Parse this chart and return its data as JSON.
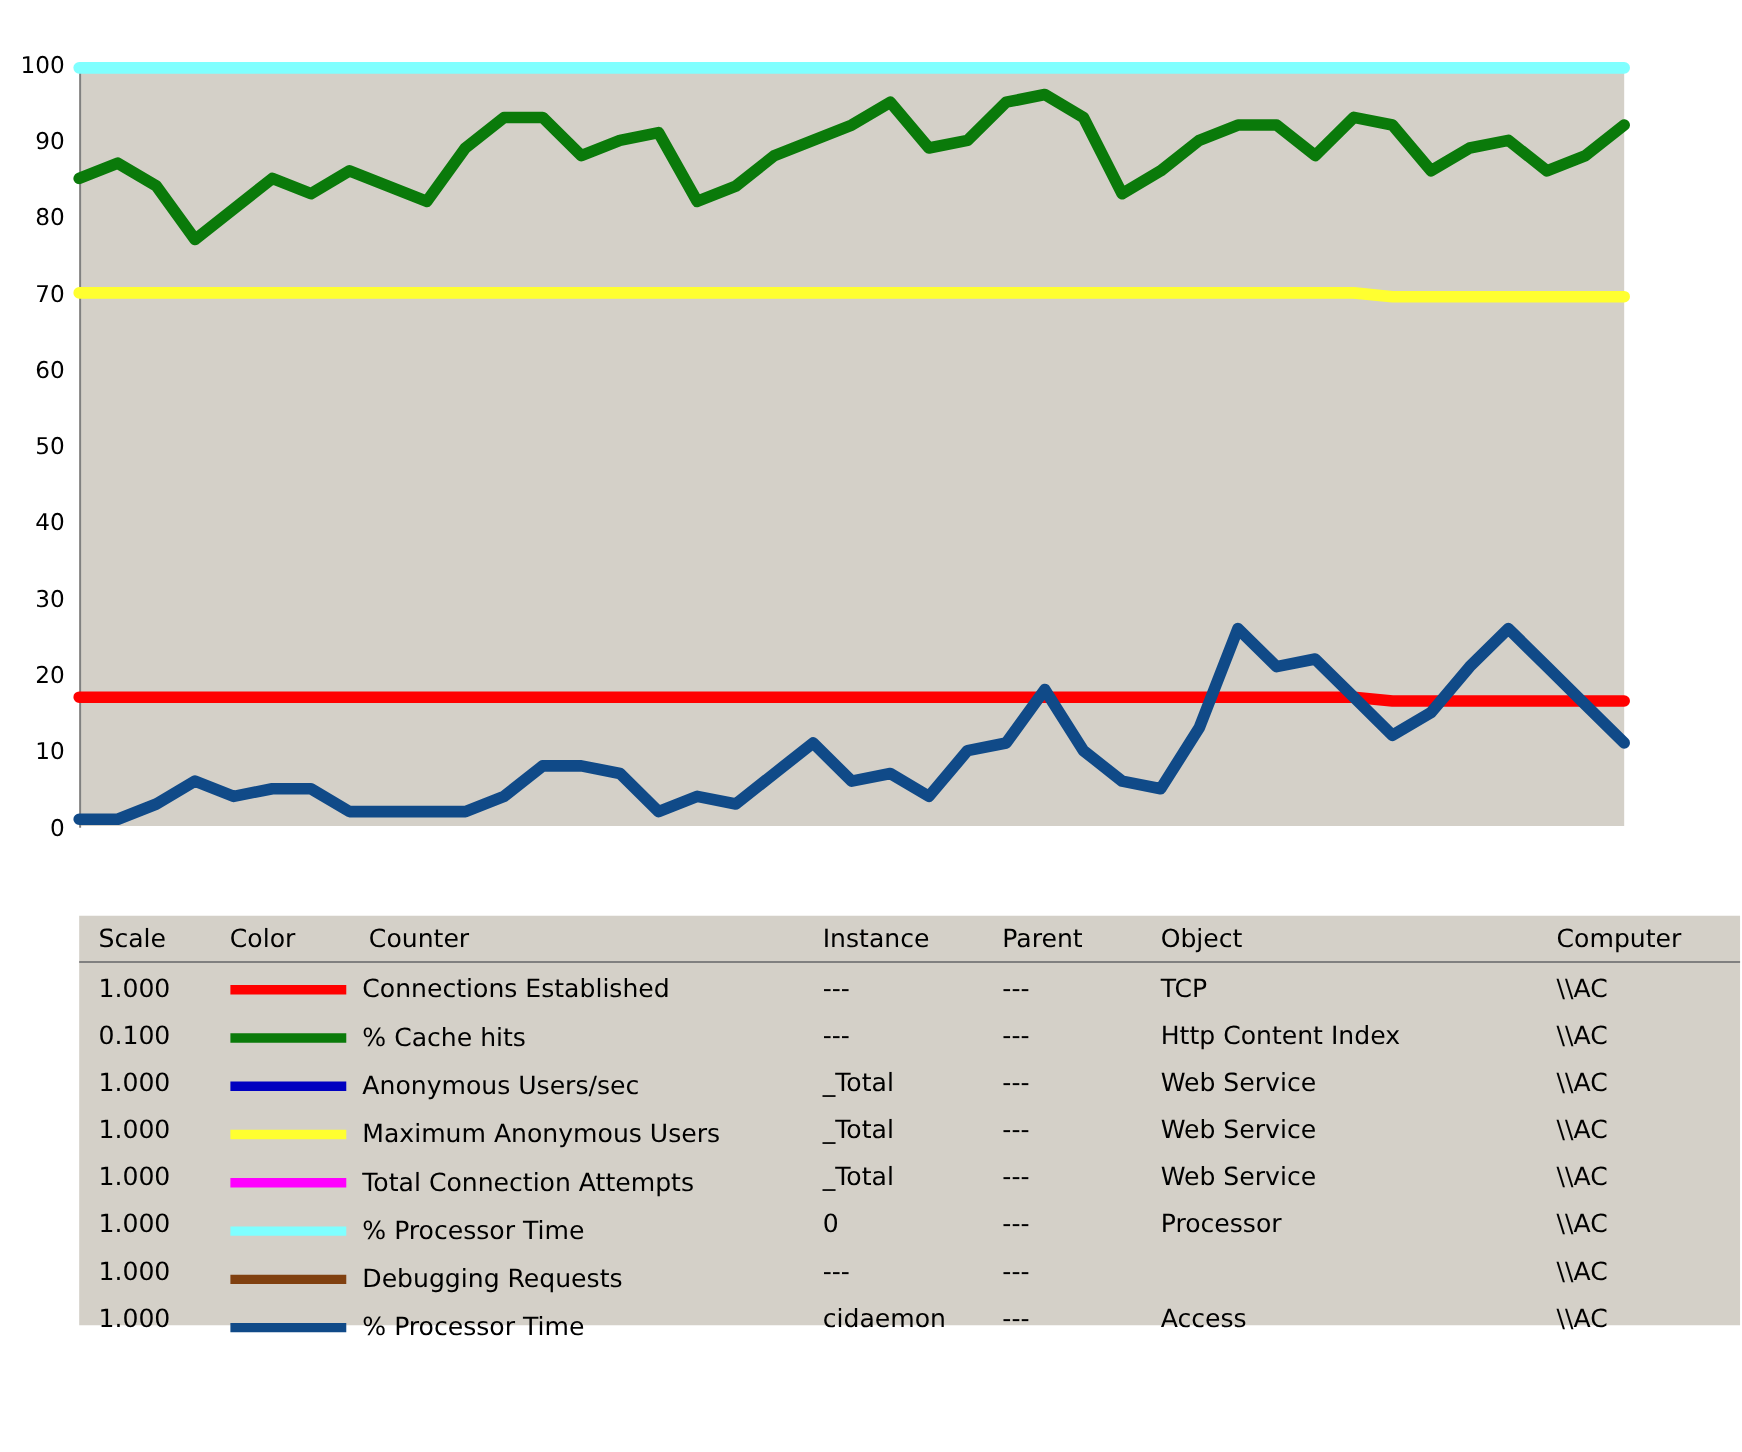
{
  "chart_data": {
    "type": "line",
    "categories": [
      null,
      null,
      null,
      null,
      null,
      null,
      null,
      null,
      null,
      null,
      null,
      null,
      null,
      null,
      null,
      null,
      null,
      null,
      null,
      null,
      null,
      null,
      null,
      null,
      null,
      null,
      null,
      null,
      null,
      null,
      null,
      null,
      null,
      null,
      null,
      null,
      null,
      null,
      null,
      null,
      null
    ],
    "ylim": [
      0,
      100
    ],
    "yticks": [
      0,
      10,
      20,
      30,
      40,
      50,
      60,
      70,
      80,
      90,
      100
    ],
    "grid": false,
    "tick_labels": "y",
    "legend": "bottom",
    "series": [
      {
        "name": "Connections Established",
        "color": "#ff0000",
        "values": [
          17,
          17,
          17,
          17,
          17,
          17,
          17,
          17,
          17,
          17,
          17,
          17,
          17,
          17,
          17,
          17,
          17,
          17,
          17,
          17,
          17,
          17,
          17,
          17,
          17,
          17,
          17,
          17,
          17,
          17,
          17,
          17,
          17,
          17,
          16.5,
          16.5,
          16.5,
          16.5,
          16.5,
          16.5,
          16.5
        ]
      },
      {
        "name": "% Cache hits",
        "color": "#0a7a0a",
        "values": [
          85,
          87,
          84,
          77,
          81,
          85,
          83,
          86,
          84,
          82,
          89,
          93,
          93,
          88,
          90,
          91,
          82,
          84,
          88,
          90,
          92,
          95,
          89,
          90,
          95,
          96,
          93,
          83,
          86,
          90,
          92,
          92,
          88,
          93,
          92,
          86,
          89,
          90,
          86,
          88,
          92
        ]
      },
      {
        "name": "Anonymous Users/sec",
        "color": "#0000c0",
        "values": [
          null,
          null,
          null,
          null,
          null,
          null,
          null,
          null,
          null,
          null,
          null,
          null,
          null,
          null,
          null,
          null,
          null,
          null,
          null,
          null,
          null,
          null,
          null,
          null,
          null,
          null,
          null,
          null,
          null,
          null,
          null,
          null,
          null,
          null,
          null,
          null,
          null,
          null,
          null,
          null,
          null
        ]
      },
      {
        "name": "Maximum Anonymous Users",
        "color": "#ffff30",
        "values": [
          70,
          70,
          70,
          70,
          70,
          70,
          70,
          70,
          70,
          70,
          70,
          70,
          70,
          70,
          70,
          70,
          70,
          70,
          70,
          70,
          70,
          70,
          70,
          70,
          70,
          70,
          70,
          70,
          70,
          70,
          70,
          70,
          70,
          70,
          69.5,
          69.5,
          69.5,
          69.5,
          69.5,
          69.5,
          69.5
        ]
      },
      {
        "name": "Total Connection Attempts",
        "color": "#ff00ff",
        "values": [
          null,
          null,
          null,
          null,
          null,
          null,
          null,
          null,
          null,
          null,
          null,
          null,
          null,
          null,
          null,
          null,
          null,
          null,
          null,
          null,
          null,
          null,
          null,
          null,
          null,
          null,
          null,
          null,
          null,
          null,
          null,
          null,
          null,
          null,
          null,
          null,
          null,
          null,
          null,
          null,
          null
        ]
      },
      {
        "name": "% Processor Time",
        "color": "#7fffff",
        "values": [
          99.5,
          99.5,
          99.5,
          99.5,
          99.5,
          99.5,
          99.5,
          99.5,
          99.5,
          99.5,
          99.5,
          99.5,
          99.5,
          99.5,
          99.5,
          99.5,
          99.5,
          99.5,
          99.5,
          99.5,
          99.5,
          99.5,
          99.5,
          99.5,
          99.5,
          99.5,
          99.5,
          99.5,
          99.5,
          99.5,
          99.5,
          99.5,
          99.5,
          99.5,
          99.5,
          99.5,
          99.5,
          99.5,
          99.5,
          99.5,
          99.5
        ]
      },
      {
        "name": "Debugging Requests",
        "color": "#804010",
        "values": [
          null,
          null,
          null,
          null,
          null,
          null,
          null,
          null,
          null,
          null,
          null,
          null,
          null,
          null,
          null,
          null,
          null,
          null,
          null,
          null,
          null,
          null,
          null,
          null,
          null,
          null,
          null,
          null,
          null,
          null,
          null,
          null,
          null,
          null,
          null,
          null,
          null,
          null,
          null,
          null,
          null
        ]
      },
      {
        "name": "% Processor Time",
        "color": "#104a88",
        "values": [
          1,
          1,
          3,
          6,
          4,
          5,
          5,
          2,
          2,
          2,
          2,
          4,
          8,
          8,
          7,
          2,
          4,
          3,
          7,
          11,
          6,
          7,
          4,
          10,
          11,
          18,
          10,
          6,
          5,
          13,
          26,
          21,
          22,
          17,
          12,
          15,
          21,
          26,
          21,
          16,
          11
        ]
      }
    ],
    "annotations": [
      "Scale",
      "Color",
      "Counter",
      "Instance",
      "Parent",
      "Object",
      "Computer",
      "1.000",
      "---",
      "---",
      "TCP",
      "\\\\AC",
      "0.100",
      "---",
      "---",
      "Http Content Index",
      "\\\\AC",
      "1.000",
      "_Total",
      "---",
      "Web Service",
      "\\\\AC",
      "1.000",
      "_Total",
      "---",
      "Web Service",
      "\\\\AC",
      "1.000",
      "_Total",
      "---",
      "Web Service",
      "\\\\AC",
      "1.000",
      "0",
      "---",
      "Processor",
      "\\\\AC",
      "1.000",
      "---",
      "---",
      null,
      "\\\\AC",
      "1.000",
      "cidaemon",
      "---",
      "Access",
      "\\\\AC"
    ]
  }
}
